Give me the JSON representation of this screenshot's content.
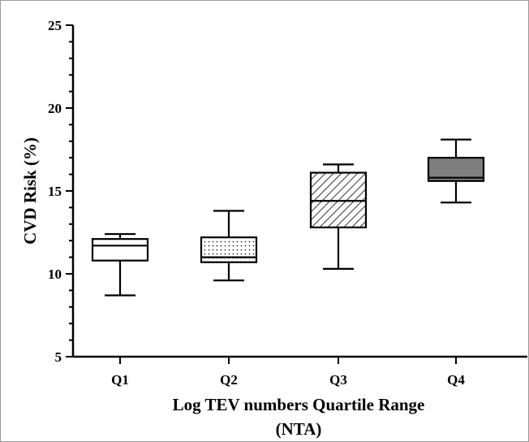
{
  "chart_data": {
    "type": "box",
    "xlabel_lines": [
      "Log TEV numbers Quartile Range",
      "(NTA)"
    ],
    "ylabel": "CVD Risk (%)",
    "ylim": [
      5,
      25
    ],
    "yticks": [
      "5",
      "10",
      "15",
      "20",
      "25"
    ],
    "grid": false,
    "categories": [
      "Q1",
      "Q2",
      "Q3",
      "Q4"
    ],
    "boxes": [
      {
        "label": "Q1",
        "min": 8.7,
        "q1": 10.8,
        "median": 11.7,
        "q3": 12.1,
        "max": 12.4,
        "fill": "plain"
      },
      {
        "label": "Q2",
        "min": 9.6,
        "q1": 10.7,
        "median": 11.0,
        "q3": 12.2,
        "max": 13.8,
        "fill": "dotted"
      },
      {
        "label": "Q3",
        "min": 10.3,
        "q1": 12.8,
        "median": 14.4,
        "q3": 16.1,
        "max": 16.6,
        "fill": "hatched"
      },
      {
        "label": "Q4",
        "min": 14.3,
        "q1": 15.6,
        "median": 15.8,
        "q3": 17.0,
        "max": 18.1,
        "fill": "gray"
      }
    ],
    "colors": {
      "axis": "#000000",
      "box_stroke": "#000000",
      "gray_fill": "#7f7f7f",
      "plain_fill": "#ffffff"
    }
  }
}
